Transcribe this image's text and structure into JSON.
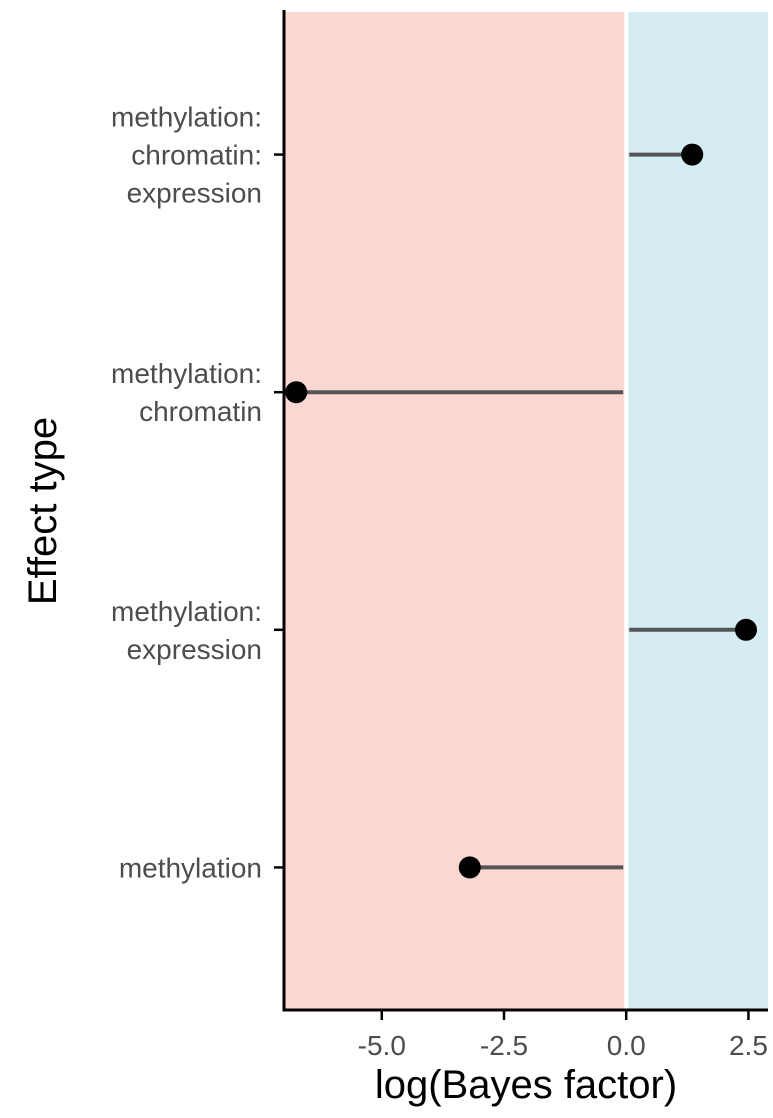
{
  "chart_data": {
    "type": "lollipop",
    "title": "",
    "xlabel": "log(Bayes factor)",
    "ylabel": "Effect type",
    "xlim": [
      -7.0,
      2.9
    ],
    "x_ticks": [
      -5.0,
      -2.5,
      0.0,
      2.5
    ],
    "x_tick_labels": [
      "-5.0",
      "-2.5",
      "0.0",
      "2.5"
    ],
    "grid": false,
    "baseline": 0,
    "categories": [
      "methylation:\nchromatin:\nexpression",
      "methylation:\nchromatin",
      "methylation:\nexpression",
      "methylation"
    ],
    "values": [
      1.35,
      -6.75,
      2.45,
      -3.2
    ],
    "background_regions": [
      {
        "from": -7.0,
        "to": 0.0,
        "color": "#fbd7d2"
      },
      {
        "from": 0.0,
        "to": 2.9,
        "color": "#d6ecf3"
      }
    ]
  },
  "colors": {
    "negative_region": "#fbd7d2",
    "positive_region": "#d6ecf3",
    "separator": "#ffffff",
    "stem": "#555555",
    "point": "#000000",
    "axis": "#000000",
    "tick_label": "#4d4d4d"
  }
}
